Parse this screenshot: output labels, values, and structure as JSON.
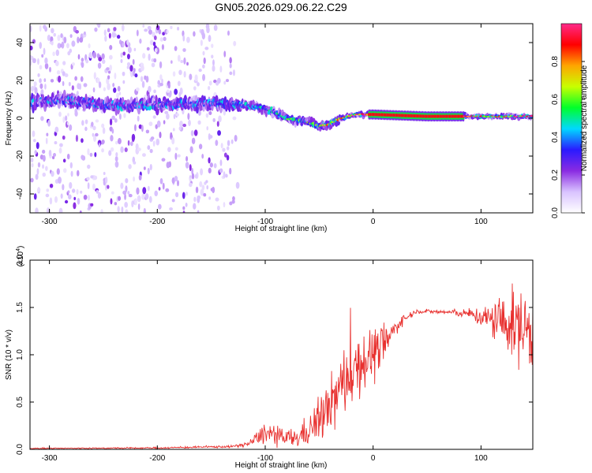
{
  "title": "GN05.2026.029.06.22.C29",
  "chart_data": [
    {
      "type": "heatmap",
      "xlabel": "Height of straight line (km)",
      "ylabel": "Frequency (Hz)",
      "xlim": [
        -318,
        148
      ],
      "ylim": [
        -50,
        50
      ],
      "xticks": [
        -300,
        -200,
        -100,
        0,
        100
      ],
      "xtick_labels": [
        "-300",
        "-200",
        "-100",
        "0",
        "100"
      ],
      "yticks": [
        -40,
        -20,
        0,
        20,
        40
      ],
      "ytick_labels": [
        "-40",
        "-20",
        "0",
        "20",
        "40"
      ],
      "grid": false,
      "noise_floor": [
        {
          "x": -318,
          "density": 0.7
        },
        {
          "x": -160,
          "density": 0.6
        },
        {
          "x": -130,
          "density": 0.35
        },
        {
          "x": -125,
          "density": 0.0
        }
      ],
      "ridge": [
        {
          "x": -318,
          "freq": 8
        },
        {
          "x": -290,
          "freq": 10
        },
        {
          "x": -250,
          "freq": 7
        },
        {
          "x": -200,
          "freq": 7
        },
        {
          "x": -150,
          "freq": 8
        },
        {
          "x": -120,
          "freq": 7
        },
        {
          "x": -100,
          "freq": 5
        },
        {
          "x": -80,
          "freq": 0
        },
        {
          "x": -60,
          "freq": -2
        },
        {
          "x": -50,
          "freq": -4
        },
        {
          "x": -40,
          "freq": -3
        },
        {
          "x": -30,
          "freq": 0
        },
        {
          "x": -15,
          "freq": 2
        },
        {
          "x": 0,
          "freq": 2
        },
        {
          "x": 50,
          "freq": 1
        },
        {
          "x": 100,
          "freq": 1
        },
        {
          "x": 148,
          "freq": 1
        }
      ],
      "peak_amplitude": [
        {
          "x": -318,
          "amp": 0.2
        },
        {
          "x": -130,
          "amp": 0.25
        },
        {
          "x": -100,
          "amp": 0.4
        },
        {
          "x": -60,
          "amp": 0.5
        },
        {
          "x": -30,
          "amp": 0.7
        },
        {
          "x": 0,
          "amp": 0.95
        },
        {
          "x": 80,
          "amp": 0.95
        },
        {
          "x": 100,
          "amp": 0.7
        },
        {
          "x": 148,
          "amp": 0.85
        }
      ],
      "colorbar": {
        "label": "Normalized spectral amplitude",
        "range": [
          0,
          1
        ],
        "ticks": [
          0.0,
          0.2,
          0.4,
          0.6,
          0.8
        ],
        "tick_labels": [
          "0.0",
          "0.2",
          "0.4",
          "0.6",
          "0.8"
        ],
        "colormap": [
          "#ffffff",
          "#d9c3ff",
          "#8a2be2",
          "#2a1aff",
          "#00d8ff",
          "#00ff2a",
          "#c8ff00",
          "#ffa500",
          "#ff0000",
          "#ff2a8a"
        ]
      }
    },
    {
      "type": "line",
      "xlabel": "Height of straight line (km)",
      "ylabel": "SNR (10 * v/v)",
      "y_multiplier_label": "(x10",
      "y_multiplier_exp": "4",
      "y_multiplier_close": ")",
      "xlim": [
        -318,
        148
      ],
      "ylim": [
        0,
        2.0
      ],
      "xticks": [
        -300,
        -200,
        -100,
        0,
        100
      ],
      "xtick_labels": [
        "-300",
        "-200",
        "-100",
        "0",
        "100"
      ],
      "yticks": [
        0,
        0.5,
        1.0,
        1.5,
        2.0
      ],
      "ytick_labels": [
        "0.0",
        "0.5",
        "1.0",
        "1.5",
        "2.0"
      ],
      "grid": false,
      "series": [
        {
          "color": "#e8302e",
          "envelope": [
            {
              "x": -318,
              "mean": 0.01,
              "noise": 0.006
            },
            {
              "x": -200,
              "mean": 0.015,
              "noise": 0.008
            },
            {
              "x": -130,
              "mean": 0.03,
              "noise": 0.012
            },
            {
              "x": -115,
              "mean": 0.06,
              "noise": 0.03
            },
            {
              "x": -100,
              "mean": 0.18,
              "noise": 0.12
            },
            {
              "x": -85,
              "mean": 0.12,
              "noise": 0.1
            },
            {
              "x": -70,
              "mean": 0.12,
              "noise": 0.1
            },
            {
              "x": -55,
              "mean": 0.25,
              "noise": 0.2
            },
            {
              "x": -40,
              "mean": 0.45,
              "noise": 0.3
            },
            {
              "x": -25,
              "mean": 0.75,
              "noise": 0.4
            },
            {
              "x": -15,
              "mean": 0.9,
              "noise": 0.35
            },
            {
              "x": 0,
              "mean": 1.0,
              "noise": 0.3
            },
            {
              "x": 10,
              "mean": 1.1,
              "noise": 0.2
            },
            {
              "x": 25,
              "mean": 1.35,
              "noise": 0.06
            },
            {
              "x": 40,
              "mean": 1.46,
              "noise": 0.02
            },
            {
              "x": 70,
              "mean": 1.45,
              "noise": 0.03
            },
            {
              "x": 90,
              "mean": 1.43,
              "noise": 0.05
            },
            {
              "x": 105,
              "mean": 1.38,
              "noise": 0.15
            },
            {
              "x": 120,
              "mean": 1.35,
              "noise": 0.3
            },
            {
              "x": 135,
              "mean": 1.3,
              "noise": 0.4
            },
            {
              "x": 148,
              "mean": 1.25,
              "noise": 0.45
            }
          ]
        }
      ]
    }
  ]
}
